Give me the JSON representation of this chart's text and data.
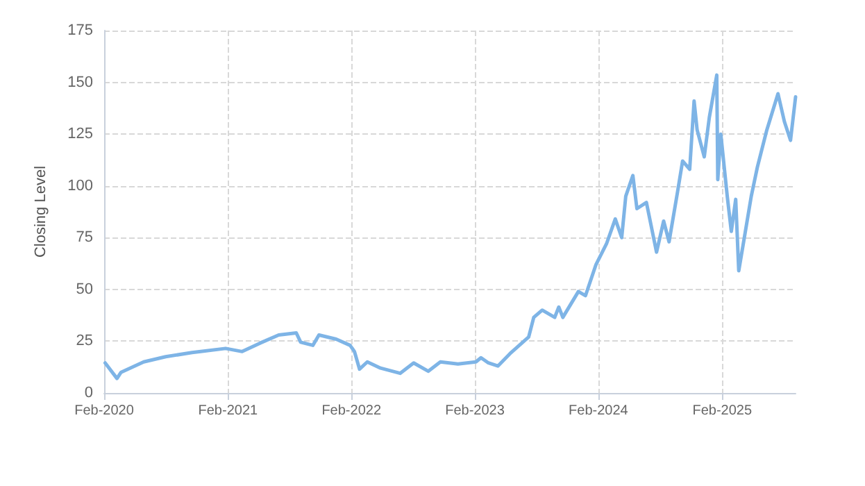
{
  "chart_data": {
    "type": "line",
    "ylabel": "Closing Level",
    "x": [
      "2020-02-04",
      "2020-03-10",
      "2020-03-22",
      "2020-05-28",
      "2020-08-01",
      "2020-10-18",
      "2021-01-25",
      "2021-03-15",
      "2021-05-06",
      "2021-07-01",
      "2021-08-22",
      "2021-09-04",
      "2021-10-10",
      "2021-10-28",
      "2021-12-18",
      "2022-01-28",
      "2022-02-10",
      "2022-02-25",
      "2022-03-20",
      "2022-04-28",
      "2022-06-25",
      "2022-08-04",
      "2022-09-16",
      "2022-10-22",
      "2022-12-13",
      "2023-02-04",
      "2023-02-19",
      "2023-03-13",
      "2023-04-10",
      "2023-05-19",
      "2023-07-10",
      "2023-07-25",
      "2023-08-19",
      "2023-09-25",
      "2023-10-07",
      "2023-10-19",
      "2023-12-04",
      "2023-12-25",
      "2024-01-25",
      "2024-02-25",
      "2024-03-22",
      "2024-04-10",
      "2024-04-22",
      "2024-05-13",
      "2024-05-25",
      "2024-06-22",
      "2024-07-22",
      "2024-08-12",
      "2024-08-28",
      "2024-09-22",
      "2024-10-07",
      "2024-10-28",
      "2024-11-10",
      "2024-11-19",
      "2024-12-10",
      "2024-12-25",
      "2025-01-16",
      "2025-01-19",
      "2025-01-28",
      "2025-02-16",
      "2025-02-28",
      "2025-03-13",
      "2025-03-22",
      "2025-04-07",
      "2025-04-28",
      "2025-05-16",
      "2025-06-13",
      "2025-07-16",
      "2025-08-04",
      "2025-08-22",
      "2025-09-06"
    ],
    "series": [
      {
        "color": "#7eb4e6",
        "values": [
          14.5,
          7,
          10,
          15,
          17.5,
          19.5,
          21.5,
          20,
          24,
          28,
          29,
          24.5,
          23,
          28,
          26,
          23,
          20,
          11.5,
          15,
          12,
          9.5,
          14.5,
          10.5,
          15,
          14,
          15,
          17,
          14.5,
          13,
          19.5,
          27,
          36.5,
          40,
          36.5,
          41.5,
          36.5,
          49,
          47,
          62,
          72,
          84,
          75,
          95,
          105,
          89,
          92,
          68,
          83,
          73,
          97,
          112,
          108,
          141,
          127,
          114,
          133,
          153.5,
          103,
          125,
          95,
          78,
          93.5,
          59,
          74.5,
          95,
          109,
          127,
          144.5,
          131,
          122,
          143
        ]
      }
    ],
    "xlim": [
      "2020-02-01",
      "2025-09-06"
    ],
    "xticks": [
      {
        "value": "2020-02-01",
        "label": "Feb-2020"
      },
      {
        "value": "2021-02-01",
        "label": "Feb-2021"
      },
      {
        "value": "2022-02-01",
        "label": "Feb-2022"
      },
      {
        "value": "2023-02-01",
        "label": "Feb-2023"
      },
      {
        "value": "2024-02-01",
        "label": "Feb-2024"
      },
      {
        "value": "2025-02-01",
        "label": "Feb-2025"
      }
    ],
    "ylim": [
      0,
      175
    ],
    "yticks": [
      0,
      25,
      50,
      75,
      100,
      125,
      150,
      175
    ],
    "grid": true,
    "line_style": "solid",
    "marker": "none"
  }
}
